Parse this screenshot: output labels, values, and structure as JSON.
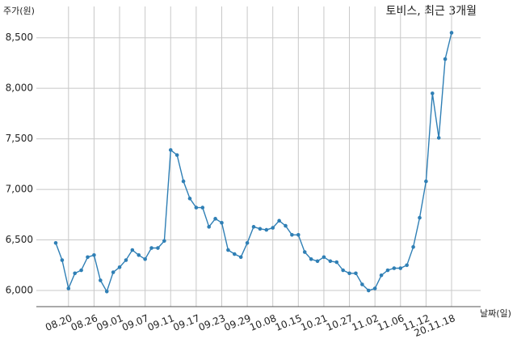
{
  "chart_data": {
    "type": "line",
    "title": "토비스, 최근 3개월",
    "y_label": "주가(원)",
    "x_label": "날짜(일)",
    "categories": [
      null,
      null,
      "08.20",
      null,
      null,
      null,
      "08.26",
      null,
      null,
      null,
      "09.01",
      null,
      null,
      null,
      "09.07",
      null,
      null,
      null,
      "09.11",
      null,
      null,
      null,
      "09.17",
      null,
      null,
      null,
      "09.23",
      null,
      null,
      null,
      "09.29",
      null,
      null,
      null,
      "10.08",
      null,
      null,
      null,
      "10.15",
      null,
      null,
      null,
      "10.21",
      null,
      null,
      null,
      "10.27",
      null,
      null,
      null,
      "11.02",
      null,
      null,
      null,
      "11.06",
      null,
      null,
      null,
      "11.12",
      null,
      null,
      null,
      "20.11.18"
    ],
    "values": [
      6470,
      6300,
      6020,
      6170,
      6200,
      6330,
      6350,
      6100,
      5990,
      6180,
      6230,
      6300,
      6400,
      6350,
      6310,
      6420,
      6420,
      6490,
      7390,
      7340,
      7080,
      6910,
      6820,
      6820,
      6630,
      6710,
      6670,
      6400,
      6360,
      6330,
      6470,
      6630,
      6610,
      6600,
      6620,
      6690,
      6640,
      6550,
      6550,
      6380,
      6310,
      6290,
      6330,
      6290,
      6280,
      6200,
      6170,
      6170,
      6060,
      6000,
      6020,
      6150,
      6200,
      6220,
      6220,
      6250,
      6430,
      6720,
      7080,
      7950,
      7510,
      8290,
      8550
    ],
    "color": "#2f7fb5",
    "ylim": [
      5840,
      8810
    ],
    "yticks": [
      {
        "value": 6000,
        "label": "6,000"
      },
      {
        "value": 6500,
        "label": "6,500"
      },
      {
        "value": 7000,
        "label": "7,000"
      },
      {
        "value": 7500,
        "label": "7,500"
      },
      {
        "value": 8000,
        "label": "8,000"
      },
      {
        "value": 8500,
        "label": "8,500"
      }
    ],
    "grid": true
  }
}
